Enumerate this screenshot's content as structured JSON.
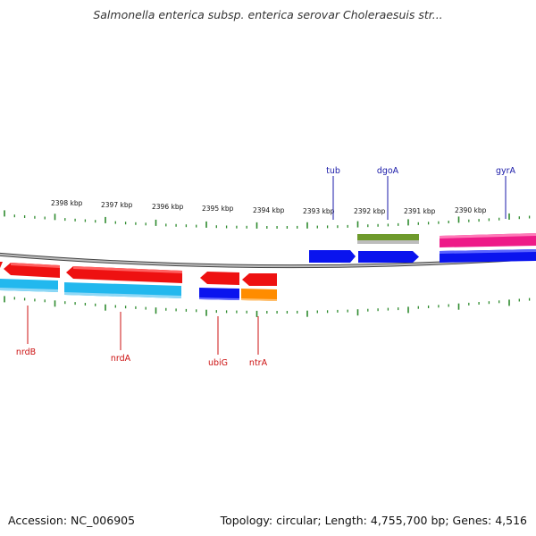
{
  "title": "Salmonella enterica subsp. enterica serovar Choleraesuis str...",
  "footer": {
    "accession": "Accession: NC_006905",
    "topology": "Topology: circular; Length: 4,755,700 bp; Genes: 4,516"
  },
  "colors": {
    "backbone": "#8a8a8a",
    "tick": "#2e8b2e",
    "label_top": "#1a1aa8",
    "label_bottom": "#cc1111",
    "red": "#ee1111",
    "blue": "#0a14ee",
    "cyan": "#22b8ee",
    "orange": "#ff8c00",
    "green": "#6e9a2c",
    "magenta": "#ee1a88"
  },
  "kbp_labels": [
    "2398 kbp",
    "2397 kbp",
    "2396 kbp",
    "2395 kbp",
    "2394 kbp",
    "2393 kbp",
    "2392 kbp",
    "2391 kbp",
    "2390 kbp"
  ],
  "top_genes": [
    "tub",
    "dgoA",
    "gyrA"
  ],
  "bottom_genes": [
    "nrdB",
    "nrdA",
    "ubiG",
    "ntrA"
  ]
}
